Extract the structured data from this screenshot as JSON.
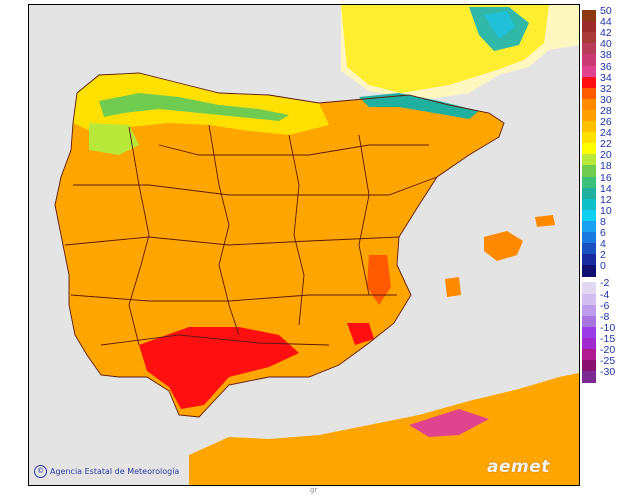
{
  "map": {
    "credit_text": "Agencia Estatal de Meteorología",
    "credit_symbol": "©",
    "logo_text": "aemet",
    "bottom_mark": "gr",
    "colors": {
      "sea": "#e4e4e4",
      "base_land": "#ffa500",
      "border_line": "#5a1a10"
    }
  },
  "legend": {
    "unit_hint": "",
    "entries": [
      {
        "label": "50",
        "color": "#8b3a0f"
      },
      {
        "label": "44",
        "color": "#9b2a2a"
      },
      {
        "label": "42",
        "color": "#a83a3a"
      },
      {
        "label": "40",
        "color": "#b83c5a"
      },
      {
        "label": "38",
        "color": "#cc3a74"
      },
      {
        "label": "36",
        "color": "#e1448f"
      },
      {
        "label": "34",
        "color": "#ff1010"
      },
      {
        "label": "32",
        "color": "#ff5a00"
      },
      {
        "label": "30",
        "color": "#ff8a00"
      },
      {
        "label": "28",
        "color": "#ffa000"
      },
      {
        "label": "26",
        "color": "#ffc000"
      },
      {
        "label": "24",
        "color": "#ffe000"
      },
      {
        "label": "22",
        "color": "#ffff00"
      },
      {
        "label": "20",
        "color": "#b8e83a"
      },
      {
        "label": "18",
        "color": "#70cc50"
      },
      {
        "label": "16",
        "color": "#3cc07a"
      },
      {
        "label": "14",
        "color": "#20b0a0"
      },
      {
        "label": "12",
        "color": "#10c0c8"
      },
      {
        "label": "10",
        "color": "#10d0f0"
      },
      {
        "label": "8",
        "color": "#1aa0f0"
      },
      {
        "label": "6",
        "color": "#1a78e0"
      },
      {
        "label": "4",
        "color": "#1a50c0"
      },
      {
        "label": "2",
        "color": "#1a2aa0"
      },
      {
        "label": "0",
        "color": "#101070"
      },
      {
        "label": "-2",
        "color": "#e2d8f2"
      },
      {
        "label": "-4",
        "color": "#d2bef0"
      },
      {
        "label": "-6",
        "color": "#bc9ce8"
      },
      {
        "label": "-8",
        "color": "#a874e0"
      },
      {
        "label": "-10",
        "color": "#9a3ce8"
      },
      {
        "label": "-15",
        "color": "#a02ad0"
      },
      {
        "label": "-20",
        "color": "#b01a90"
      },
      {
        "label": "-25",
        "color": "#8a1070"
      },
      {
        "label": "-30",
        "color": "#7a2a90"
      }
    ]
  }
}
